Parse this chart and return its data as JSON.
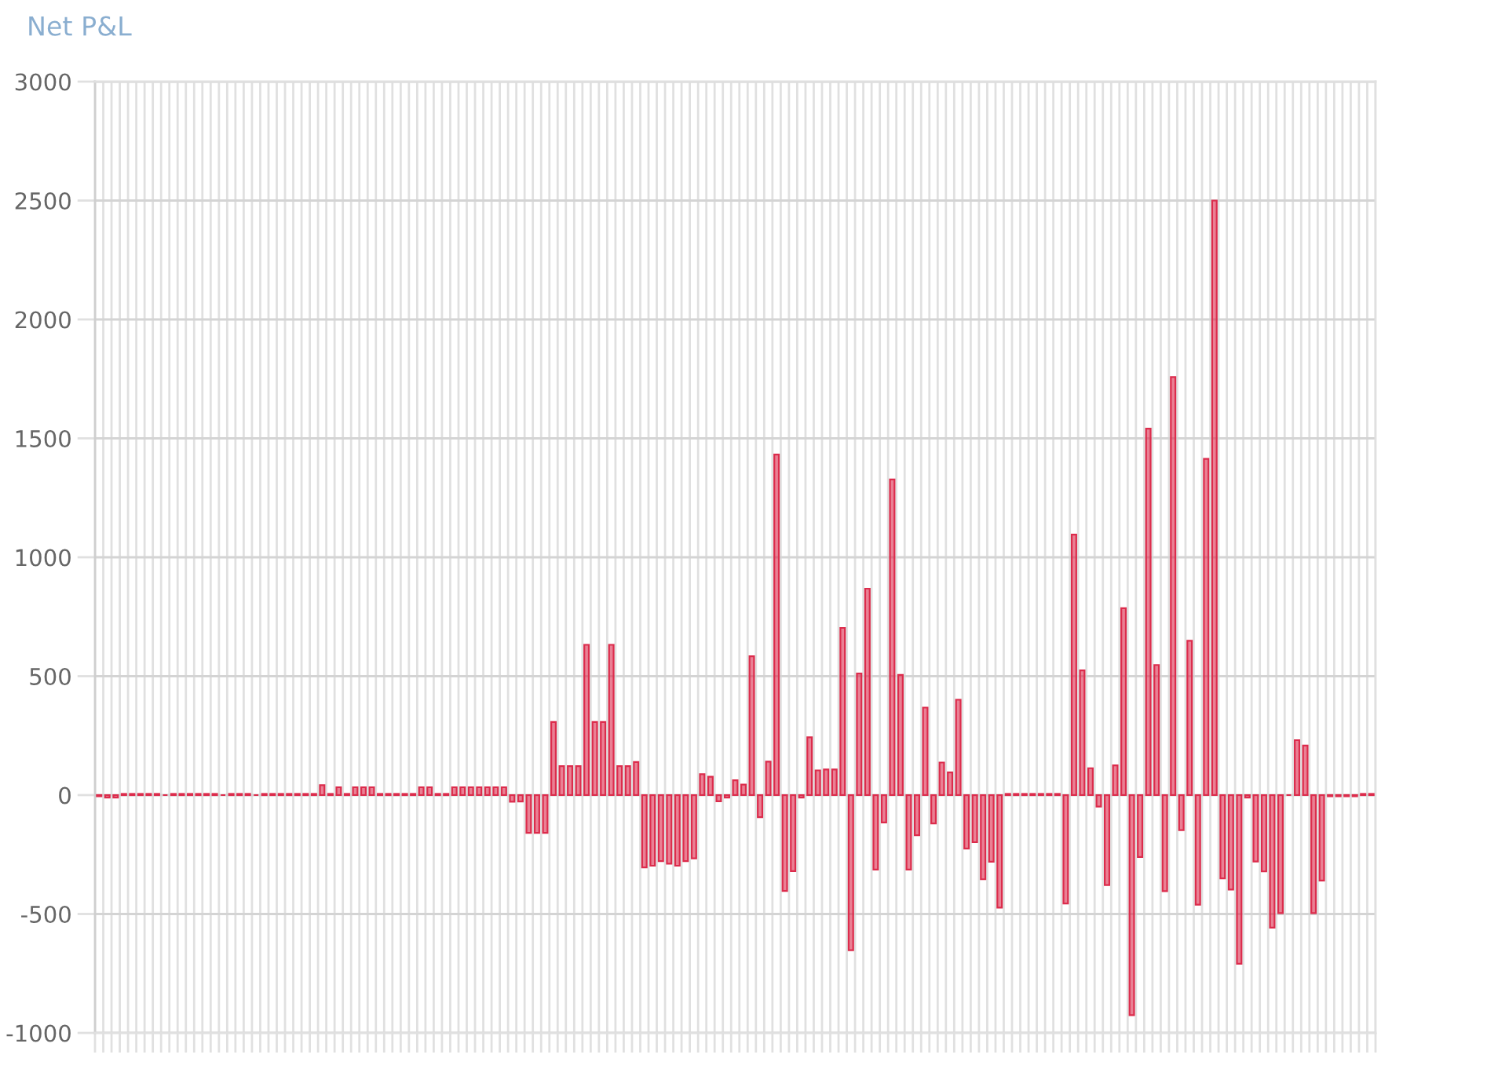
{
  "chart_data": {
    "type": "bar",
    "title": "Net P&L",
    "categories": [
      null,
      null,
      null,
      null,
      null,
      null,
      null,
      null,
      null,
      null,
      null,
      null,
      null,
      null,
      null,
      null,
      null,
      null,
      null,
      null,
      null,
      null,
      null,
      null,
      null,
      null,
      null,
      null,
      null,
      null,
      null,
      null,
      null,
      null,
      null,
      null,
      null,
      null,
      null,
      null,
      null,
      null,
      null,
      null,
      null,
      null,
      null,
      null,
      null,
      null,
      null,
      null,
      null,
      null,
      null,
      null,
      null,
      null,
      null,
      null,
      null,
      null,
      null,
      null,
      null,
      null,
      null,
      null,
      null,
      null,
      null,
      null,
      null,
      null,
      null,
      null,
      null,
      null,
      null,
      null,
      null,
      null,
      null,
      null,
      null,
      null,
      null,
      null,
      null,
      null,
      null,
      null,
      null,
      null,
      null,
      null,
      null,
      null,
      null,
      null,
      null,
      null,
      null,
      null,
      null,
      null,
      null,
      null,
      null,
      null,
      null,
      null,
      null,
      null,
      null,
      null,
      null,
      null,
      null,
      null,
      null,
      null,
      null,
      null,
      null,
      null,
      null,
      null,
      null,
      null,
      null,
      null,
      null,
      null,
      null,
      null,
      null,
      null,
      null,
      null,
      null,
      null,
      null,
      null,
      null,
      null,
      null,
      null,
      null,
      null,
      null,
      null,
      null,
      null,
      null
    ],
    "values": [
      -5,
      -10,
      -10,
      5,
      5,
      5,
      5,
      5,
      0,
      5,
      5,
      5,
      5,
      5,
      5,
      0,
      5,
      5,
      5,
      0,
      5,
      5,
      5,
      5,
      5,
      5,
      5,
      42,
      5,
      33,
      5,
      33,
      33,
      33,
      5,
      5,
      5,
      5,
      5,
      33,
      33,
      5,
      5,
      33,
      33,
      33,
      33,
      33,
      33,
      33,
      -28,
      -27,
      -159,
      -159,
      -159,
      307,
      122,
      122,
      122,
      632,
      307,
      307,
      632,
      122,
      122,
      139,
      -304,
      -297,
      -278,
      -288,
      -297,
      -278,
      -266,
      88,
      77,
      -26,
      -10,
      62,
      44,
      584,
      -93,
      141,
      1432,
      -403,
      -320,
      -10,
      243,
      104,
      108,
      108,
      703,
      -652,
      511,
      868,
      -313,
      -115,
      1327,
      505,
      -313,
      -169,
      368,
      -119,
      137,
      95,
      401,
      -225,
      -198,
      -354,
      -280,
      -473,
      5,
      5,
      5,
      5,
      5,
      5,
      5,
      -456,
      1095,
      524,
      113,
      -48,
      -378,
      125,
      786,
      -925,
      -260,
      1541,
      547,
      -404,
      1758,
      -147,
      649,
      -461,
      1414,
      2500,
      -350,
      -397,
      -709,
      -10,
      -279,
      -321,
      -557,
      -496,
      0,
      231,
      208,
      -496,
      -359,
      -5,
      -5,
      -5,
      -5,
      5,
      5
    ],
    "color": "#dc2c4c",
    "ylim": [
      -1000,
      3000
    ],
    "yticks": [
      -1000,
      -500,
      0,
      500,
      1000,
      1500,
      2000,
      2500,
      3000
    ],
    "grid": true,
    "tick_labels": "y"
  }
}
